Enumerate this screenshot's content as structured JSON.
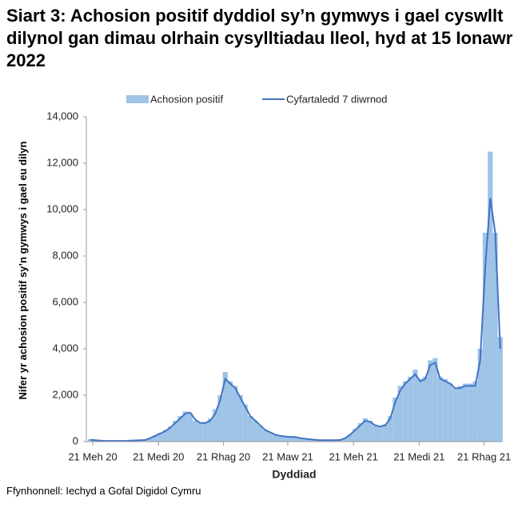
{
  "chart_data": {
    "type": "bar-line",
    "title": "Siart 3: Achosion positif dyddiol sy’n gymwys i gael cyswllt dilynol gan dimau olrhain cysylltiadau lleol, hyd at 15 Ionawr 2022",
    "x_label": "Dyddiad",
    "y_label": "Nifer yr achosion positif sy’n gymwys i gael eu dilyn",
    "source": "Ffynhonnell: Iechyd a Gofal Digidol Cymru",
    "x": [
      "2020-06-14",
      "2020-06-21",
      "2020-06-28",
      "2020-07-05",
      "2020-07-12",
      "2020-07-19",
      "2020-07-26",
      "2020-08-02",
      "2020-08-09",
      "2020-08-16",
      "2020-08-23",
      "2020-08-30",
      "2020-09-06",
      "2020-09-13",
      "2020-09-20",
      "2020-09-27",
      "2020-10-04",
      "2020-10-11",
      "2020-10-18",
      "2020-10-25",
      "2020-11-01",
      "2020-11-08",
      "2020-11-15",
      "2020-11-22",
      "2020-11-29",
      "2020-12-06",
      "2020-12-13",
      "2020-12-20",
      "2020-12-27",
      "2021-01-03",
      "2021-01-10",
      "2021-01-17",
      "2021-01-24",
      "2021-01-31",
      "2021-02-07",
      "2021-02-14",
      "2021-02-21",
      "2021-02-28",
      "2021-03-07",
      "2021-03-14",
      "2021-03-21",
      "2021-03-28",
      "2021-04-04",
      "2021-04-11",
      "2021-04-18",
      "2021-04-25",
      "2021-05-02",
      "2021-05-09",
      "2021-05-16",
      "2021-05-23",
      "2021-05-30",
      "2021-06-06",
      "2021-06-13",
      "2021-06-20",
      "2021-06-27",
      "2021-07-04",
      "2021-07-11",
      "2021-07-18",
      "2021-07-25",
      "2021-08-01",
      "2021-08-08",
      "2021-08-15",
      "2021-08-22",
      "2021-08-29",
      "2021-09-05",
      "2021-09-12",
      "2021-09-19",
      "2021-09-26",
      "2021-10-03",
      "2021-10-10",
      "2021-10-17",
      "2021-10-24",
      "2021-10-31",
      "2021-11-07",
      "2021-11-14",
      "2021-11-21",
      "2021-11-28",
      "2021-12-05",
      "2021-12-12",
      "2021-12-19",
      "2021-12-26",
      "2022-01-02",
      "2022-01-09"
    ],
    "series": [
      {
        "name": "Achosion positif",
        "kind": "bar",
        "color": "#9dc3e6",
        "values": [
          100,
          50,
          40,
          30,
          30,
          30,
          30,
          30,
          40,
          50,
          60,
          80,
          160,
          280,
          380,
          500,
          650,
          900,
          1100,
          1300,
          1200,
          900,
          800,
          850,
          1000,
          1400,
          2000,
          3000,
          2600,
          2400,
          2000,
          1600,
          1100,
          900,
          700,
          500,
          400,
          300,
          260,
          220,
          200,
          200,
          150,
          120,
          100,
          80,
          60,
          60,
          60,
          60,
          80,
          160,
          320,
          550,
          800,
          1000,
          900,
          700,
          650,
          750,
          1100,
          1900,
          2400,
          2600,
          2800,
          3100,
          2700,
          2800,
          3500,
          3600,
          2800,
          2700,
          2500,
          2300,
          2400,
          2500,
          2500,
          2600,
          4000,
          9000,
          12500,
          9000,
          4500
        ]
      },
      {
        "name": "Cyfartaledd 7 diwrnod",
        "kind": "line",
        "color": "#4472c4",
        "values": [
          80,
          60,
          40,
          30,
          30,
          30,
          30,
          30,
          40,
          50,
          60,
          70,
          150,
          250,
          350,
          450,
          600,
          800,
          1000,
          1200,
          1250,
          950,
          800,
          800,
          900,
          1200,
          1800,
          2700,
          2500,
          2300,
          1900,
          1500,
          1100,
          900,
          700,
          500,
          400,
          300,
          250,
          220,
          200,
          200,
          150,
          120,
          100,
          80,
          60,
          60,
          60,
          60,
          70,
          150,
          300,
          500,
          700,
          900,
          850,
          700,
          650,
          700,
          1000,
          1700,
          2200,
          2500,
          2700,
          2900,
          2600,
          2700,
          3300,
          3400,
          2700,
          2600,
          2500,
          2300,
          2300,
          2400,
          2400,
          2400,
          3500,
          7500,
          10500,
          9000,
          4000
        ]
      }
    ],
    "xlim": [
      "2020-06-12",
      "2022-01-15"
    ],
    "xticks": [
      {
        "value": "2020-06-21",
        "label": "21 Meh 20"
      },
      {
        "value": "2020-09-21",
        "label": "21 Medi 20"
      },
      {
        "value": "2020-12-21",
        "label": "21 Rhag 20"
      },
      {
        "value": "2021-03-21",
        "label": "21 Maw 21"
      },
      {
        "value": "2021-06-21",
        "label": "21 Meh 21"
      },
      {
        "value": "2021-09-21",
        "label": "21 Medi 21"
      },
      {
        "value": "2021-12-21",
        "label": "21 Rhag 21"
      }
    ],
    "ylim": [
      0,
      14000
    ],
    "yticks": [
      0,
      {
        "value": 2000,
        "label": "2,000"
      },
      {
        "value": 4000,
        "label": "4,000"
      },
      {
        "value": 6000,
        "label": "6,000"
      },
      {
        "value": 8000,
        "label": "8,000"
      },
      {
        "value": 10000,
        "label": "10,000"
      },
      {
        "value": 12000,
        "label": "12,000"
      },
      {
        "value": 14000,
        "label": "14,000"
      }
    ],
    "legend": "top"
  }
}
